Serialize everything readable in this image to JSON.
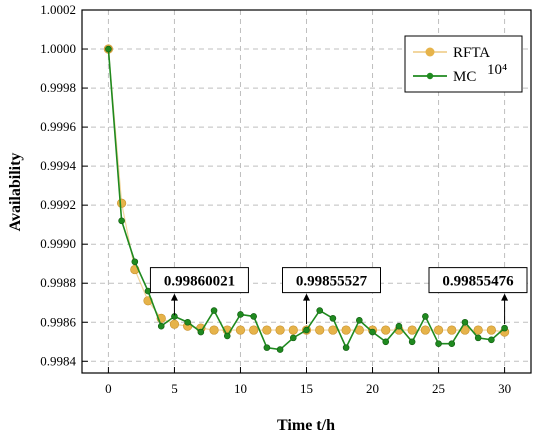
{
  "chart_data": {
    "type": "line",
    "xlabel": "Time t/h",
    "ylabel": "Availability",
    "xlim": [
      -2,
      32
    ],
    "ylim": [
      0.99834,
      1.0002
    ],
    "x_ticks": [
      "0",
      "5",
      "10",
      "15",
      "20",
      "25",
      "30"
    ],
    "y_ticks": [
      "0.9984",
      "0.9986",
      "0.9988",
      "0.9990",
      "0.9992",
      "0.9994",
      "0.9996",
      "0.9998",
      "1.0000",
      "1.0002"
    ],
    "x": [
      0,
      1,
      2,
      3,
      4,
      5,
      6,
      7,
      8,
      9,
      10,
      11,
      12,
      13,
      14,
      15,
      16,
      17,
      18,
      19,
      20,
      21,
      22,
      23,
      24,
      25,
      26,
      27,
      28,
      29,
      30
    ],
    "series": [
      {
        "name": "RFTA",
        "color": "#e6b34a",
        "values": [
          1.0,
          0.99921,
          0.99887,
          0.99871,
          0.99862,
          0.99859,
          0.99858,
          0.99857,
          0.99856,
          0.99856,
          0.99856,
          0.99856,
          0.99856,
          0.99856,
          0.99856,
          0.99856,
          0.99856,
          0.99856,
          0.99856,
          0.99856,
          0.99856,
          0.99856,
          0.99856,
          0.99856,
          0.99856,
          0.99856,
          0.99856,
          0.99856,
          0.99856,
          0.99856,
          0.99855
        ]
      },
      {
        "name": "MC",
        "superscript": "10⁴",
        "color": "#1f8a1f",
        "values": [
          1.0,
          0.99912,
          0.99891,
          0.99876,
          0.99858,
          0.99863,
          0.9986,
          0.99855,
          0.99866,
          0.99853,
          0.99864,
          0.99863,
          0.99847,
          0.99846,
          0.99852,
          0.99856,
          0.99866,
          0.99862,
          0.99847,
          0.99861,
          0.99855,
          0.9985,
          0.99858,
          0.9985,
          0.99863,
          0.99849,
          0.99849,
          0.9986,
          0.99852,
          0.99851,
          0.99857
        ]
      }
    ],
    "annotations": [
      {
        "text": "0.99860021",
        "x": 5,
        "y": 0.9986
      },
      {
        "text": "0.99855527",
        "x": 15,
        "y": 0.99855527
      },
      {
        "text": "0.99855476",
        "x": 30,
        "y": 0.99855476
      }
    ],
    "legend_position": "top-right",
    "grid": true
  }
}
